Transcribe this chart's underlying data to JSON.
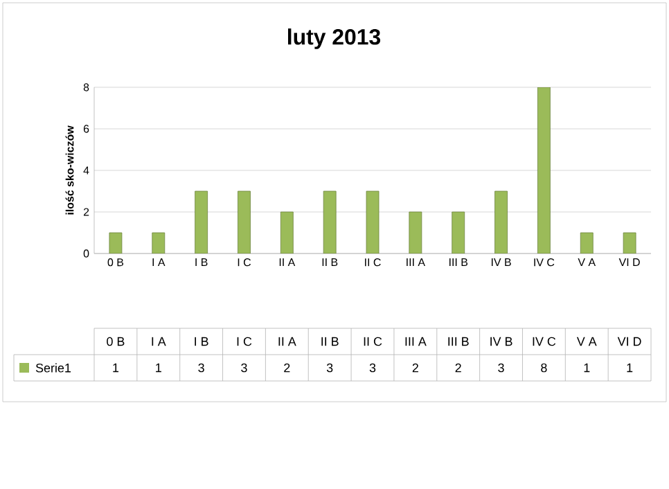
{
  "chart_data": {
    "type": "bar",
    "title": "luty 2013",
    "ylabel": "ilość sko-wiczów",
    "categories": [
      "0 B",
      "I A",
      "I B",
      "I C",
      "II A",
      "II B",
      "II C",
      "III A",
      "III B",
      "IV B",
      "IV C",
      "V A",
      "VI D"
    ],
    "series": [
      {
        "name": "Serie1",
        "color": "#9bbb59",
        "values": [
          1,
          1,
          3,
          3,
          2,
          3,
          3,
          2,
          2,
          3,
          8,
          1,
          1
        ]
      }
    ],
    "ylim": [
      0,
      8
    ],
    "yticks": [
      0,
      2,
      4,
      6,
      8
    ],
    "grid": "y",
    "data_labels": true,
    "legend": "bottom left"
  }
}
